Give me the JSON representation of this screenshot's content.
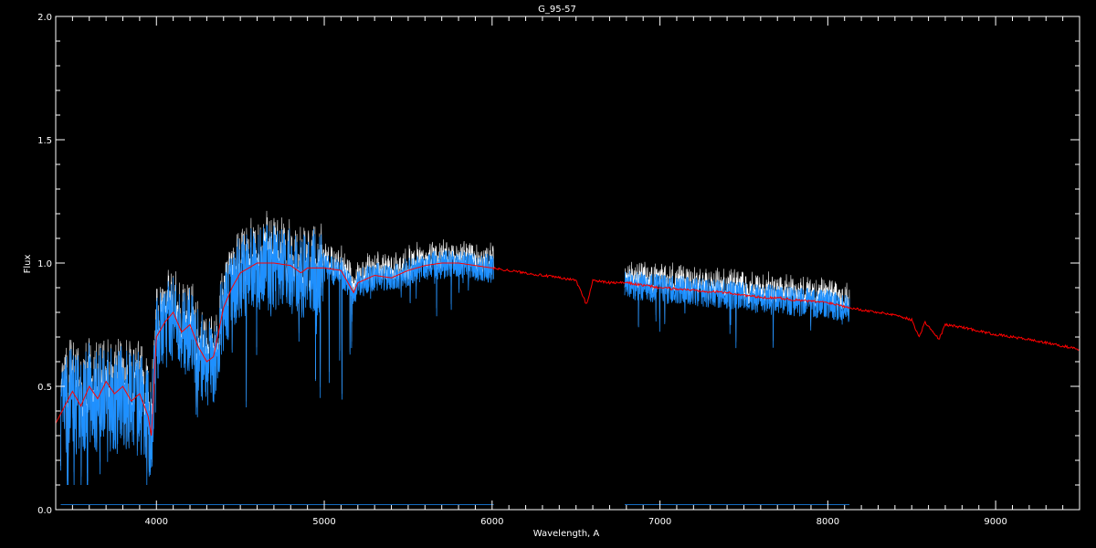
{
  "chart_data": {
    "type": "line",
    "title": "G_95-57",
    "xlabel": "Wavelength, A",
    "ylabel": "Flux",
    "xlim": [
      3400,
      9500
    ],
    "ylim": [
      0.0,
      2.0
    ],
    "x_ticks": [
      "4000",
      "5000",
      "6000",
      "7000",
      "8000",
      "9000"
    ],
    "y_ticks": [
      "0.0",
      "0.5",
      "1.0",
      "1.5",
      "2.0"
    ],
    "grid": false,
    "colors": {
      "background": "#000000",
      "axes": "#ffffff",
      "observed": "#1e90ff",
      "observed_alt": "#ffffff",
      "model": "#ff0000"
    },
    "series": [
      {
        "color": "#ff0000",
        "x": [
          3400,
          3500,
          3550,
          3600,
          3650,
          3700,
          3750,
          3800,
          3850,
          3900,
          3950,
          3970,
          4000,
          4050,
          4100,
          4150,
          4200,
          4250,
          4300,
          4340,
          4400,
          4450,
          4500,
          4600,
          4700,
          4800,
          4861,
          4900,
          5000,
          5100,
          5175,
          5200,
          5300,
          5400,
          5500,
          5600,
          5700,
          5800,
          5900,
          6000,
          6100,
          6200,
          6300,
          6400,
          6500,
          6563,
          6600,
          6700,
          6800,
          7000,
          7200,
          7400,
          7600,
          7700,
          7800,
          8000,
          8200,
          8400,
          8500,
          8542,
          8580,
          8662,
          8700,
          8800,
          9000,
          9200,
          9500
        ],
        "y": [
          0.35,
          0.48,
          0.42,
          0.5,
          0.45,
          0.52,
          0.47,
          0.5,
          0.44,
          0.47,
          0.38,
          0.3,
          0.7,
          0.76,
          0.8,
          0.72,
          0.75,
          0.66,
          0.6,
          0.62,
          0.82,
          0.9,
          0.96,
          1.0,
          1.0,
          0.99,
          0.96,
          0.98,
          0.98,
          0.97,
          0.88,
          0.92,
          0.95,
          0.94,
          0.97,
          0.99,
          1.0,
          1.0,
          0.99,
          0.98,
          0.97,
          0.96,
          0.95,
          0.94,
          0.93,
          0.83,
          0.93,
          0.92,
          0.92,
          0.9,
          0.89,
          0.88,
          0.86,
          0.86,
          0.85,
          0.84,
          0.81,
          0.79,
          0.77,
          0.7,
          0.76,
          0.69,
          0.75,
          0.74,
          0.71,
          0.69,
          0.65
        ]
      },
      {
        "color": "#1e90ff",
        "x_range": [
          3430,
          6010
        ]
      },
      {
        "color": "#1e90ff",
        "x_range": [
          6790,
          8130
        ]
      }
    ]
  }
}
